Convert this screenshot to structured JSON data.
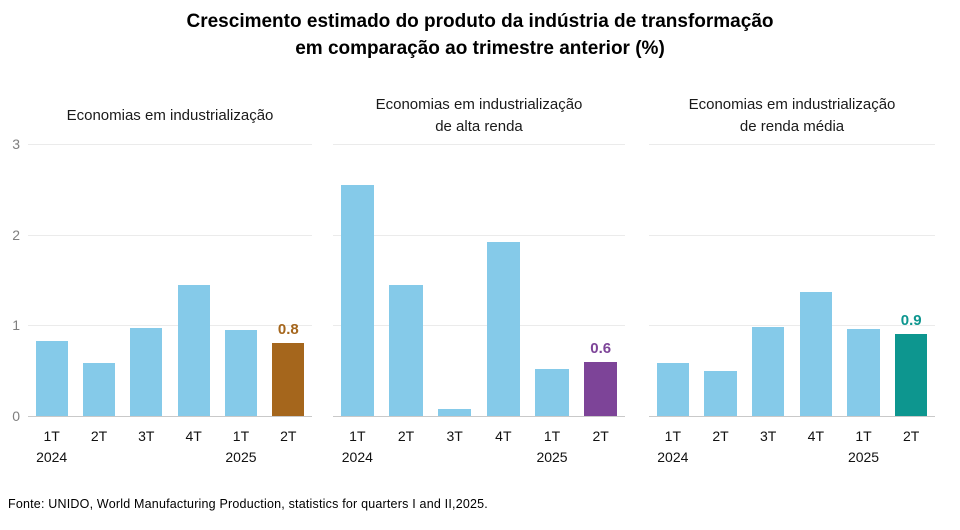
{
  "title": {
    "line1": "Crescimento estimado do produto da indústria de transformação",
    "line2": "em comparação ao trimestre anterior (%)"
  },
  "footer": {
    "text": "Fonte: UNIDO, World Manufacturing Production, statistics for quarters I and II,2025."
  },
  "colors": {
    "bar_default": "#85CAE9",
    "highlight_brown": "#A5661C",
    "highlight_purple": "#7D4498",
    "highlight_teal": "#0D968F",
    "gridline": "#EBEBEB",
    "axis_line": "#C9C9C9",
    "ytick_label": "#7F7F7F"
  },
  "chart_data": [
    {
      "type": "bar",
      "title": "Economias em industrialização",
      "title_lines": [
        "Economias em industrialização"
      ],
      "categories": [
        "1T",
        "2T",
        "3T",
        "4T",
        "1T",
        "2T"
      ],
      "year_labels": [
        "2024",
        "",
        "",
        "",
        "2025",
        ""
      ],
      "values": [
        0.83,
        0.58,
        0.97,
        1.45,
        0.95,
        0.8
      ],
      "highlight_index": 5,
      "highlight_color": "#A5661C",
      "highlight_label": "0.8",
      "xlabel": "",
      "ylabel": "",
      "ylim": [
        0,
        3
      ],
      "yticks": [
        0,
        1,
        2,
        3
      ],
      "show_ytick_labels": true,
      "grid": true,
      "legend": "none"
    },
    {
      "type": "bar",
      "title": "Economias em industrialização de alta renda",
      "title_lines": [
        "Economias em industrialização",
        "de alta renda"
      ],
      "categories": [
        "1T",
        "2T",
        "3T",
        "4T",
        "1T",
        "2T"
      ],
      "year_labels": [
        "2024",
        "",
        "",
        "",
        "2025",
        ""
      ],
      "values": [
        2.55,
        1.44,
        0.08,
        1.92,
        0.52,
        0.6
      ],
      "highlight_index": 5,
      "highlight_color": "#7D4498",
      "highlight_label": "0.6",
      "xlabel": "",
      "ylabel": "",
      "ylim": [
        0,
        3
      ],
      "yticks": [
        0,
        1,
        2,
        3
      ],
      "show_ytick_labels": false,
      "grid": true,
      "legend": "none"
    },
    {
      "type": "bar",
      "title": "Economias em industrialização de renda média",
      "title_lines": [
        "Economias em industrialização",
        "de renda média"
      ],
      "categories": [
        "1T",
        "2T",
        "3T",
        "4T",
        "1T",
        "2T"
      ],
      "year_labels": [
        "2024",
        "",
        "",
        "",
        "2025",
        ""
      ],
      "values": [
        0.58,
        0.5,
        0.98,
        1.37,
        0.96,
        0.9
      ],
      "highlight_index": 5,
      "highlight_color": "#0D968F",
      "highlight_label": "0.9",
      "xlabel": "",
      "ylabel": "",
      "ylim": [
        0,
        3
      ],
      "yticks": [
        0,
        1,
        2,
        3
      ],
      "show_ytick_labels": false,
      "grid": true,
      "legend": "none"
    }
  ]
}
